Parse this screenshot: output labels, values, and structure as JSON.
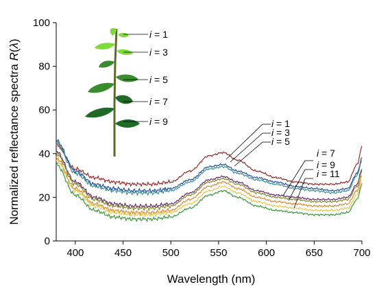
{
  "chart_data": {
    "type": "line",
    "xlabel": "Wavelength (nm)",
    "ylabel": "Normalized reflectance spectra R(λ)",
    "ylabel_parts": {
      "main": "Normalized reflectance spectra ",
      "italic": "R",
      "paren_open": "(",
      "italic2": "λ",
      "paren_close": ")"
    },
    "xlim": [
      380,
      700
    ],
    "ylim": [
      0,
      100
    ],
    "x_ticks": [
      400,
      450,
      500,
      550,
      600,
      650,
      700
    ],
    "y_ticks": [
      0,
      20,
      40,
      60,
      80,
      100
    ],
    "grid": false,
    "x": [
      380,
      400,
      420,
      440,
      460,
      480,
      500,
      520,
      540,
      555,
      570,
      590,
      610,
      630,
      650,
      670,
      685,
      695,
      700
    ],
    "series": [
      {
        "label": "i = 1",
        "color": "#9B2A2A",
        "values": [
          44,
          33,
          29,
          27,
          26,
          26,
          27,
          32,
          39,
          40.5,
          37,
          32,
          29,
          27,
          26,
          26,
          27,
          35,
          43
        ]
      },
      {
        "label": "i = 3",
        "color": "#1F4FA0",
        "values": [
          46,
          32,
          26,
          24,
          23,
          23,
          24,
          28,
          34,
          35,
          32,
          29,
          27,
          25,
          24,
          23,
          24,
          31,
          38
        ]
      },
      {
        "label": "i = 5",
        "color": "#3B8F95",
        "values": [
          45,
          31,
          25,
          23,
          22,
          22,
          23,
          27,
          33,
          34,
          31,
          28,
          26,
          24,
          23,
          22,
          23,
          30,
          37
        ]
      },
      {
        "label": "i = 7",
        "color": "#6A2B6A",
        "values": [
          41,
          27,
          20,
          17,
          16,
          16,
          17,
          22,
          28,
          29.5,
          27,
          23,
          21,
          20,
          19,
          19,
          20,
          26,
          33
        ]
      },
      {
        "label": "",
        "color": "#7F8B2A",
        "values": [
          40,
          26,
          19,
          16,
          15,
          15,
          16,
          21,
          27,
          28.5,
          26,
          22,
          20,
          19,
          18,
          18,
          19,
          25,
          32
        ]
      },
      {
        "label": "i = 9",
        "color": "#E08A2E",
        "values": [
          38,
          24,
          17,
          14,
          13,
          13,
          14,
          19,
          25,
          27,
          24,
          20,
          18,
          17,
          16,
          16,
          17,
          23,
          30
        ]
      },
      {
        "label": "",
        "color": "#E5C94A",
        "values": [
          37,
          23,
          16,
          13,
          12,
          12,
          13,
          17,
          23,
          25,
          22,
          18,
          16,
          15,
          14,
          14,
          15,
          21,
          28
        ]
      },
      {
        "label": "i = 11",
        "color": "#3C9A3C",
        "values": [
          35,
          21,
          14,
          11,
          10,
          10,
          11,
          15,
          21,
          23,
          20,
          16,
          14,
          13,
          12,
          12,
          13,
          19,
          26
        ]
      }
    ],
    "callouts": [
      {
        "text": "i = 1",
        "prefix": "i",
        "suffix": " = 1"
      },
      {
        "text": "i = 3",
        "prefix": "i",
        "suffix": " = 3"
      },
      {
        "text": "i = 5",
        "prefix": "i",
        "suffix": " = 5"
      },
      {
        "text": "i = 7",
        "prefix": "i",
        "suffix": " = 7"
      },
      {
        "text": "i = 9",
        "prefix": "i",
        "suffix": " = 9"
      },
      {
        "text": "i = 11",
        "prefix": "i",
        "suffix": " = 11"
      }
    ],
    "plant_labels": [
      {
        "prefix": "i",
        "suffix": " = 1"
      },
      {
        "prefix": "i",
        "suffix": " = 3"
      },
      {
        "prefix": "i",
        "suffix": " = 5"
      },
      {
        "prefix": "i",
        "suffix": " = 7"
      },
      {
        "prefix": "i",
        "suffix": " = 9"
      }
    ]
  },
  "colors": {
    "stem": "#5b6b2a",
    "leaf_light": "#7ddc3a",
    "leaf_mid": "#3a8d2e",
    "leaf_dark": "#1f6a26"
  }
}
